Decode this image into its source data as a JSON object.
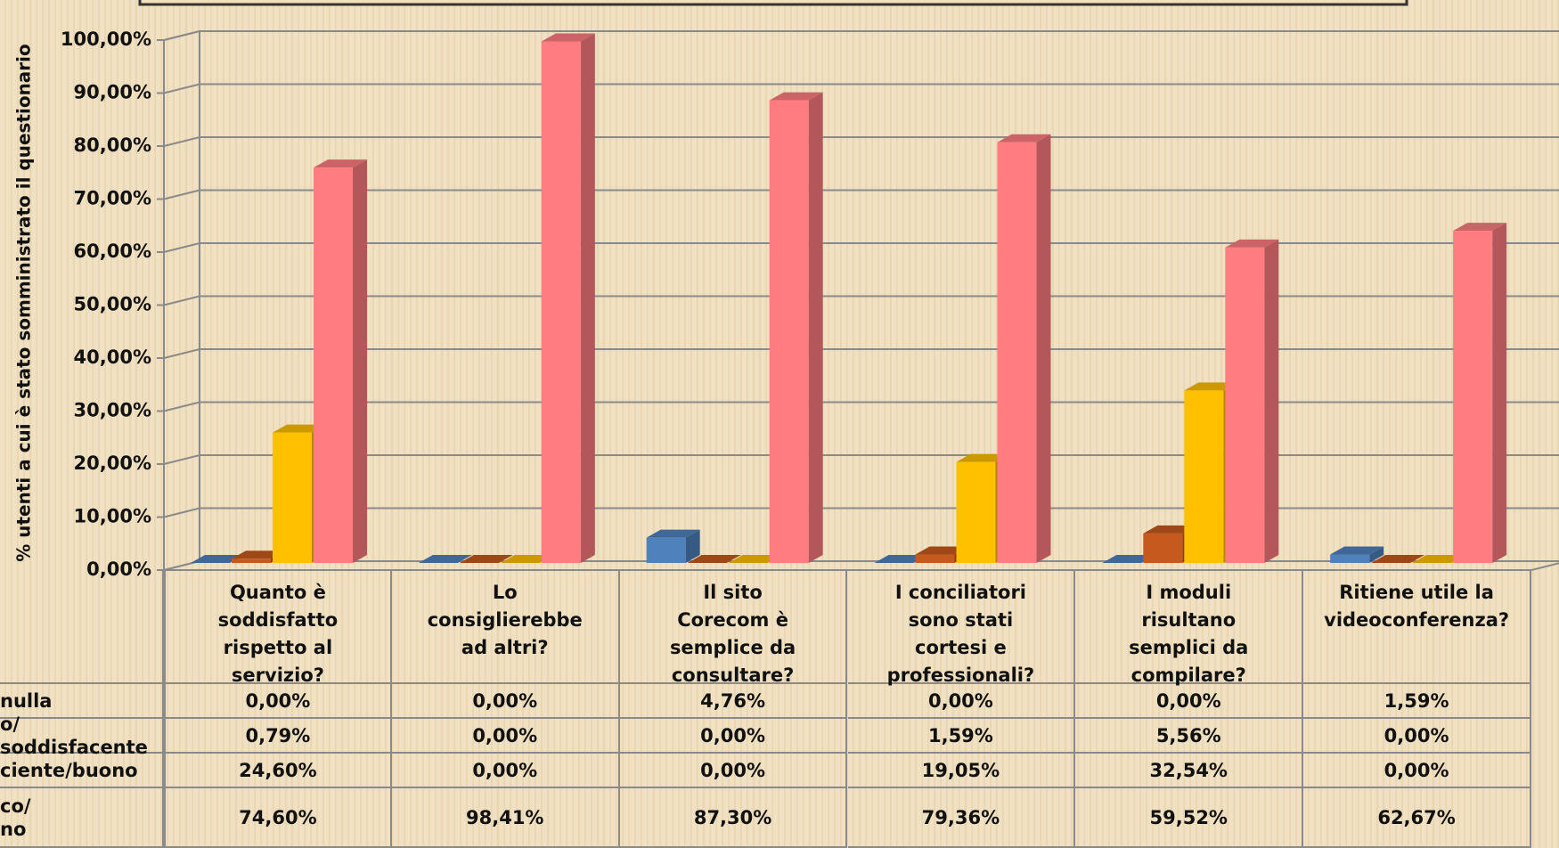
{
  "chart_data": {
    "type": "bar3d",
    "y_label": "% utenti a cui è stato somministrato il questionario",
    "categories": [
      "Quanto è soddisfatto rispetto al servizio?",
      "Lo consiglierebbe ad altri?",
      "Il sito Corecom è semplice da consultare?",
      "I conciliatori sono stati cortesi e professionali?",
      "I moduli risultano semplici da compilare?",
      "Ritiene utile la videoconferenza?"
    ],
    "series": [
      {
        "name": "nulla",
        "color": "#4f81bd",
        "values": [
          0,
          0,
          4.76,
          0,
          0,
          1.59
        ],
        "value_labels": [
          "0,00%",
          "0,00%",
          "4,76%",
          "0,00%",
          "0,00%",
          "1,59%"
        ]
      },
      {
        "name": "o/ soddisfacente",
        "color": "#c65a1e",
        "values": [
          0.79,
          0,
          0,
          1.59,
          5.56,
          0
        ],
        "value_labels": [
          "0,79%",
          "0,00%",
          "0,00%",
          "1,59%",
          "5,56%",
          "0,00%"
        ]
      },
      {
        "name": "ciente/buono",
        "color": "#ffc000",
        "values": [
          24.6,
          0,
          0,
          19.05,
          32.54,
          0
        ],
        "value_labels": [
          "24,60%",
          "0,00%",
          "0,00%",
          "19,05%",
          "32,54%",
          "0,00%"
        ]
      },
      {
        "name": "co/\nno",
        "color": "#ff7c80",
        "values": [
          74.6,
          98.41,
          87.3,
          79.36,
          59.52,
          62.67
        ],
        "value_labels": [
          "74,60%",
          "98,41%",
          "87,30%",
          "79,36%",
          "59,52%",
          "62,67%"
        ]
      }
    ],
    "ylim": [
      0,
      100
    ],
    "yticks": [
      {
        "value": 0,
        "label": "0,00%"
      },
      {
        "value": 10,
        "label": "10,00%"
      },
      {
        "value": 20,
        "label": "20,00%"
      },
      {
        "value": 30,
        "label": "30,00%"
      },
      {
        "value": 40,
        "label": "40,00%"
      },
      {
        "value": 50,
        "label": "50,00%"
      },
      {
        "value": 60,
        "label": "60,00%"
      },
      {
        "value": 70,
        "label": "70,00%"
      },
      {
        "value": 80,
        "label": "80,00%"
      },
      {
        "value": 90,
        "label": "90,00%"
      },
      {
        "value": 100,
        "label": "100,00%"
      }
    ],
    "grid": true
  }
}
